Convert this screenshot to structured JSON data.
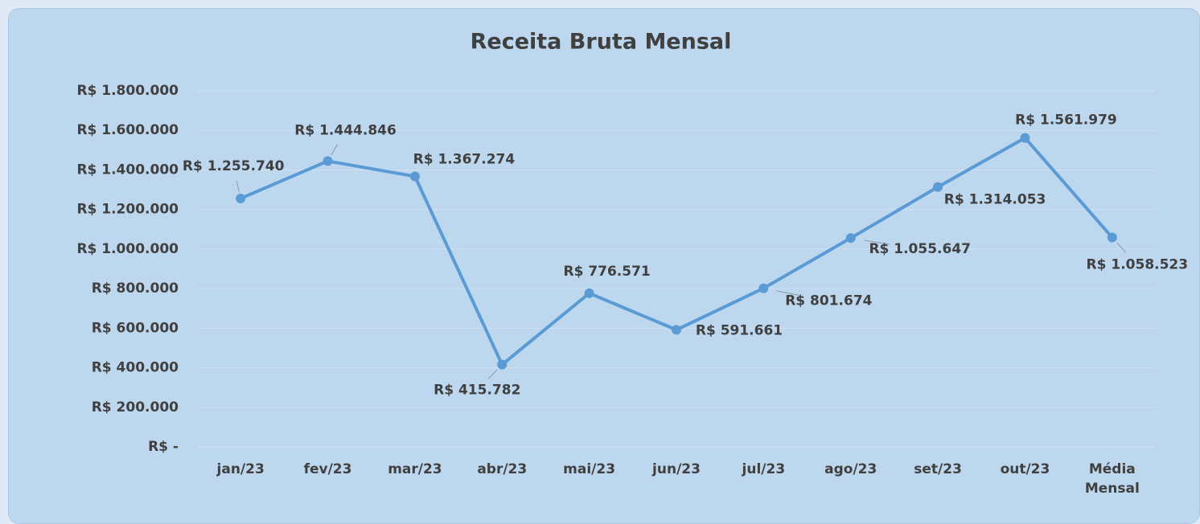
{
  "chart_data": {
    "type": "line",
    "title": "Receita Bruta Mensal",
    "categories": [
      "jan/23",
      "fev/23",
      "mar/23",
      "abr/23",
      "mai/23",
      "jun/23",
      "jul/23",
      "ago/23",
      "set/23",
      "out/23",
      "Média Mensal"
    ],
    "series": [
      {
        "color": "#5b9bd5",
        "values": [
          1255740,
          1444846,
          1367274,
          415782,
          776571,
          591661,
          801674,
          1055647,
          1314053,
          1561979,
          1058523
        ],
        "value_labels": [
          "R$ 1.255.740",
          "R$ 1.444.846",
          "R$ 1.367.274",
          "R$ 415.782",
          "R$ 776.571",
          "R$ 591.661",
          "R$ 801.674",
          "R$ 1.055.647",
          "R$ 1.314.053",
          "R$ 1.561.979",
          "R$ 1.058.523"
        ]
      }
    ],
    "ylim": [
      0,
      1800000
    ],
    "yticks": [
      {
        "value": 0,
        "label": "R$ -"
      },
      {
        "value": 200000,
        "label": "R$ 200.000"
      },
      {
        "value": 400000,
        "label": "R$ 400.000"
      },
      {
        "value": 600000,
        "label": "R$ 600.000"
      },
      {
        "value": 800000,
        "label": "R$ 800.000"
      },
      {
        "value": 1000000,
        "label": "R$ 1.000.000"
      },
      {
        "value": 1200000,
        "label": "R$ 1.200.000"
      },
      {
        "value": 1400000,
        "label": "R$ 1.400.000"
      },
      {
        "value": 1600000,
        "label": "R$ 1.600.000"
      },
      {
        "value": 1800000,
        "label": "R$ 1.800.000"
      }
    ],
    "grid": true
  }
}
